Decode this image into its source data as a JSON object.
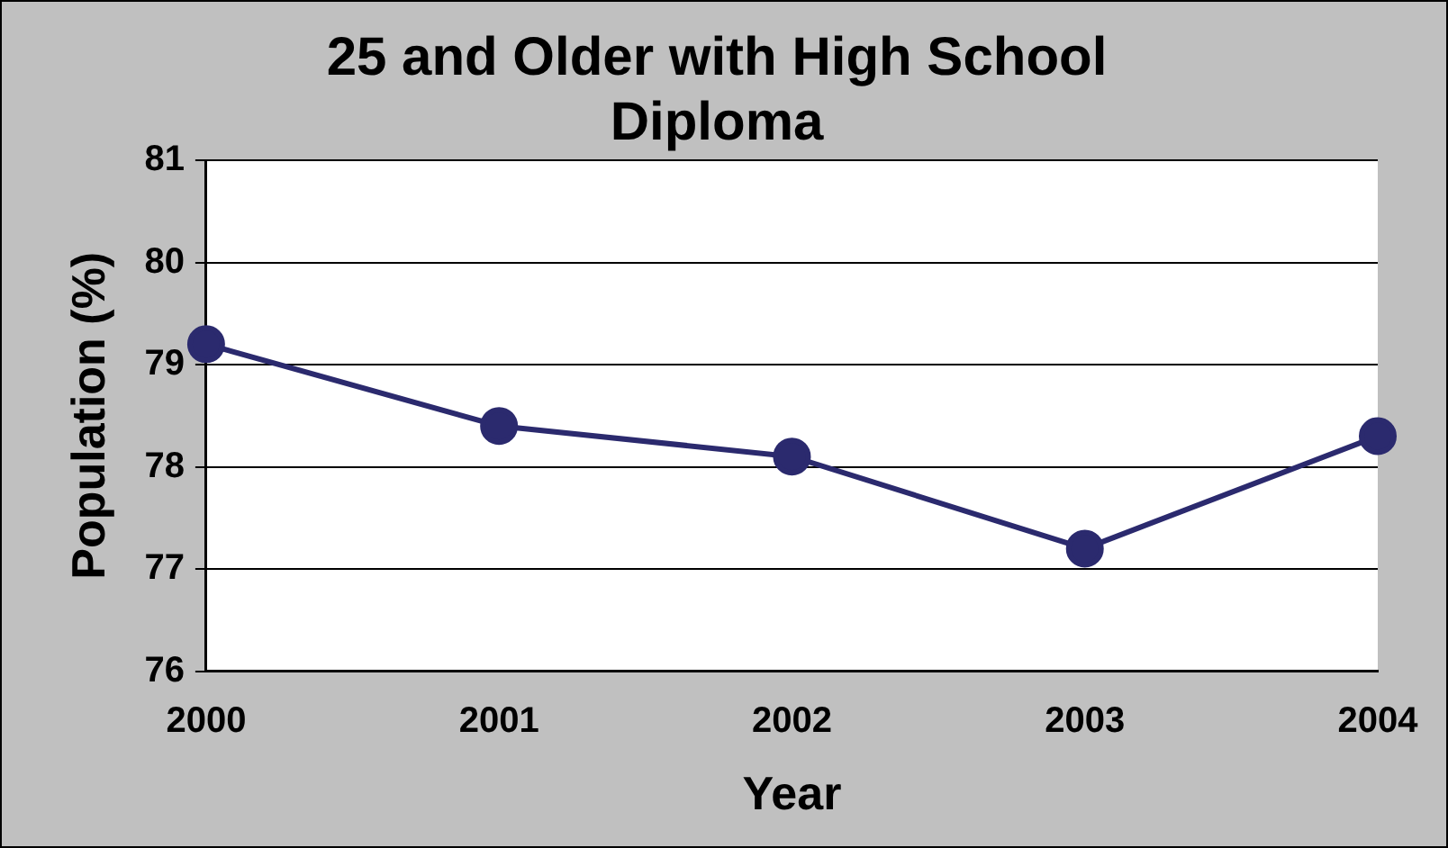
{
  "chart_data": {
    "type": "line",
    "title": "25 and Older with High School Diploma",
    "xlabel": "Year",
    "ylabel": "Population (%)",
    "categories": [
      "2000",
      "2001",
      "2002",
      "2003",
      "2004"
    ],
    "series": [
      {
        "color": "#2b2a6e",
        "values": [
          79.2,
          78.4,
          78.1,
          77.2,
          78.3
        ]
      }
    ],
    "ylim": [
      76,
      81
    ],
    "yticks": [
      76,
      77,
      78,
      79,
      80,
      81
    ],
    "grid": "y",
    "legend": false,
    "marker": "circle",
    "line_style": "solid"
  }
}
